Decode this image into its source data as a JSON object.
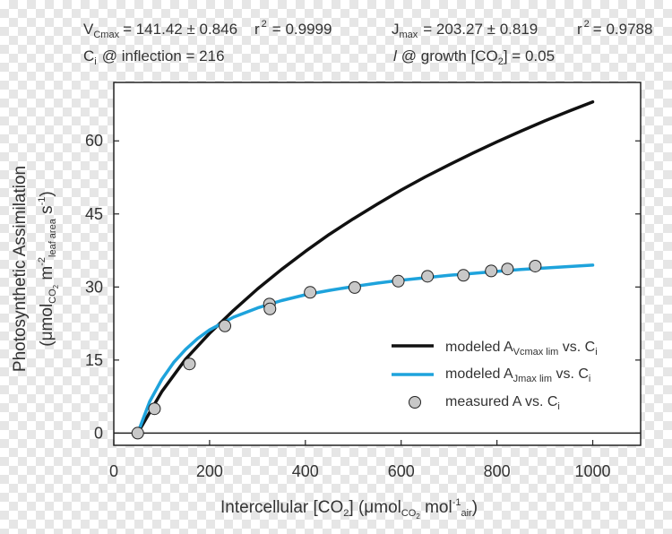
{
  "chart_data": {
    "type": "line",
    "params": {
      "vcmax_sym": "V",
      "vcmax_sub": "Cmax",
      "vcmax_val": "= 141.42 ± 0.846",
      "r_sym_1": "r",
      "r_sup_1": "2",
      "r_val_1": "=  0.9999",
      "jmax_sym": "J",
      "jmax_sub": "max",
      "jmax_val": "=  203.27 ± 0.819",
      "r_sym_2": "r",
      "r_sup_2": "2",
      "r_val_2": "= 0.9788",
      "ci_sym": "C",
      "ci_sub": "i",
      "ci_val": "@ inflection = 216",
      "growth_sym": "l",
      "growth_val": "@ growth [CO",
      "growth_sub": "2",
      "growth_val2": "] = 0.05"
    },
    "xlabel": {
      "main": "Intercellular [CO",
      "sub1": "2",
      "mid": "] (μmol",
      "sub2": "CO",
      "sub2b": "2",
      "mid2": " mol",
      "sup": "-1",
      "sub3": "air",
      "end": ")"
    },
    "ylabel": {
      "line1": "Photosynthetic Assimilation",
      "l2a": "(μmol",
      "l2sub1": "CO",
      "l2sub1b": "2",
      "l2b": " m",
      "l2sup1": "-2",
      "l2sub2": "leaf area",
      "l2c": " s",
      "l2sup2": "-1",
      "l2d": ")"
    },
    "xlim": [
      0,
      1100
    ],
    "ylim": [
      -2.5,
      72
    ],
    "xticks": [
      0,
      200,
      400,
      600,
      800,
      1000
    ],
    "yticks": [
      0,
      15,
      30,
      45,
      60
    ],
    "series": [
      {
        "name": "modeled A Vcmax lim vs. Ci",
        "color": "#111111",
        "x": [
          50,
          100,
          150,
          200,
          250,
          300,
          350,
          400,
          450,
          500,
          550,
          600,
          650,
          700,
          750,
          800,
          850,
          900,
          950,
          1000
        ],
        "y": [
          0,
          8.5,
          15.2,
          20.5,
          25.2,
          29.6,
          33.6,
          37.3,
          40.8,
          44.0,
          47.0,
          49.9,
          52.6,
          55.1,
          57.5,
          59.8,
          62.0,
          64.1,
          66.1,
          68.0
        ]
      },
      {
        "name": "modeled A Jmax lim vs. Ci",
        "color": "#1ea3dc",
        "x": [
          50,
          75,
          100,
          125,
          150,
          175,
          200,
          250,
          300,
          350,
          400,
          450,
          500,
          550,
          600,
          650,
          700,
          750,
          800,
          850,
          900,
          950,
          1000
        ],
        "y": [
          0,
          6.5,
          11.0,
          14.5,
          17.2,
          19.4,
          21.2,
          23.8,
          25.7,
          27.2,
          28.4,
          29.3,
          30.1,
          30.8,
          31.4,
          31.9,
          32.4,
          32.8,
          33.2,
          33.6,
          33.9,
          34.2,
          34.5
        ]
      }
    ],
    "points": {
      "name": "measured A vs. Ci",
      "x": [
        50,
        85,
        158,
        232,
        325,
        326,
        410,
        503,
        594,
        655,
        730,
        788,
        822,
        880
      ],
      "y": [
        0,
        5.0,
        14.2,
        22.0,
        26.5,
        25.5,
        28.9,
        29.9,
        31.2,
        32.2,
        32.4,
        33.3,
        33.7,
        34.3
      ]
    },
    "legend": {
      "item1": {
        "pre": "modeled A",
        "sub": "Vcmax lim",
        "post": " vs. C",
        "sub2": "i"
      },
      "item2": {
        "pre": "modeled A",
        "sub": "Jmax lim",
        "post": " vs. C",
        "sub2": "i"
      },
      "item3": {
        "pre": "measured A vs. C",
        "sub2": "i"
      },
      "position": "bottom-right"
    }
  }
}
